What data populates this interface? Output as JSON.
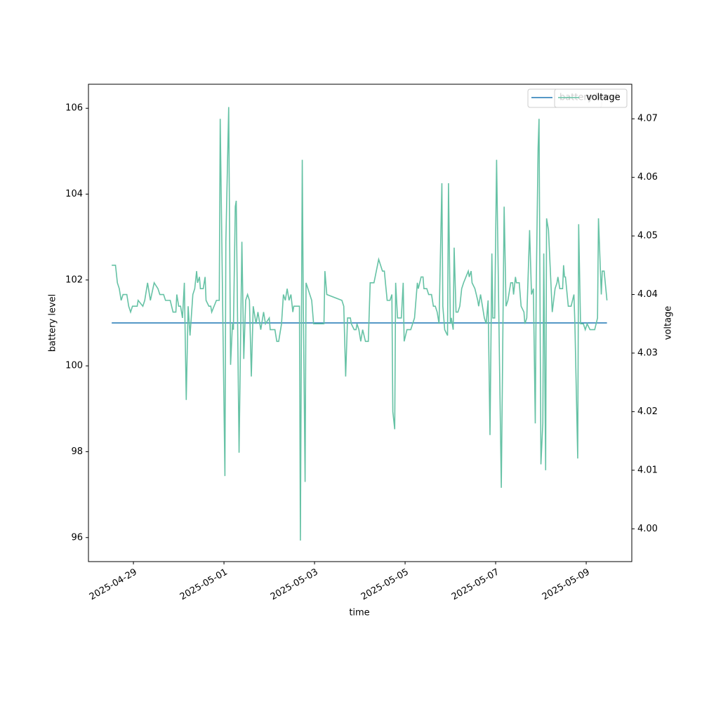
{
  "chart_data": {
    "type": "line",
    "xlabel": "time",
    "ylabel": "battery level",
    "y2label": "voltage",
    "xlim": [
      "2025-04-28T00:10",
      "2025-05-10T00:10"
    ],
    "xticks": [
      "2025-04-29",
      "2025-05-01",
      "2025-05-03",
      "2025-05-05",
      "2025-05-07",
      "2025-05-09"
    ],
    "ylim": [
      95.44,
      106.56
    ],
    "yticks": [
      96,
      98,
      100,
      102,
      104,
      106
    ],
    "y2lim": [
      3.9944,
      4.0759
    ],
    "y2ticks": [
      {
        "value": 4,
        "label": "4.00"
      },
      4.01,
      4.02,
      4.03,
      4.04,
      4.05,
      4.06,
      4.07
    ],
    "legend": "upper right",
    "series": [
      {
        "name": "battery level",
        "color": "#1f77b4",
        "x": [
          "2025-04-28T12:30",
          "2025-05-09T11:00"
        ],
        "values": [
          101,
          101
        ]
      },
      {
        "name": "voltage",
        "color": "#66c2a5",
        "axis": "y2",
        "x": [
          "2025-04-28T12:30",
          "2025-04-28T14:30",
          "2025-04-28T15:30",
          "2025-04-28T16:30",
          "2025-04-28T17:30",
          "2025-04-28T18:30",
          "2025-04-28T20:30",
          "2025-04-28T21:30",
          "2025-04-28T22:30",
          "2025-04-28T23:30",
          "2025-04-29T02:00",
          "2025-04-29T02:30",
          "2025-04-29T05:00",
          "2025-04-29T06:00",
          "2025-04-29T07:30",
          "2025-04-29T09:00",
          "2025-04-29T11:00",
          "2025-04-29T13:00",
          "2025-04-29T14:00",
          "2025-04-29T16:00",
          "2025-04-29T17:00",
          "2025-04-29T19:30",
          "2025-04-29T21:00",
          "2025-04-29T22:30",
          "2025-04-29T23:00",
          "2025-04-30T00:00",
          "2025-04-30T01:00",
          "2025-04-30T02:00",
          "2025-04-30T03:00",
          "2025-04-30T04:00",
          "2025-04-30T05:00",
          "2025-04-30T06:00",
          "2025-04-30T07:30",
          "2025-04-30T08:30",
          "2025-04-30T09:30",
          "2025-04-30T10:00",
          "2025-04-30T11:00",
          "2025-04-30T11:30",
          "2025-04-30T13:00",
          "2025-04-30T14:00",
          "2025-04-30T14:30",
          "2025-04-30T16:00",
          "2025-04-30T17:00",
          "2025-04-30T17:30",
          "2025-04-30T20:00",
          "2025-04-30T21:30",
          "2025-04-30T22:00",
          "2025-05-01T00:30",
          "2025-05-01T01:00",
          "2025-05-01T02:30",
          "2025-05-01T03:30",
          "2025-05-01T04:30",
          "2025-05-01T05:00",
          "2025-05-01T06:00",
          "2025-05-01T06:30",
          "2025-05-01T08:00",
          "2025-05-01T09:30",
          "2025-05-01T10:30",
          "2025-05-01T11:30",
          "2025-05-01T12:30",
          "2025-05-01T13:30",
          "2025-05-01T14:30",
          "2025-05-01T15:30",
          "2025-05-01T17:00",
          "2025-05-01T18:00",
          "2025-05-01T19:30",
          "2025-05-01T21:00",
          "2025-05-01T22:00",
          "2025-05-02T00:00",
          "2025-05-02T00:30",
          "2025-05-02T03:00",
          "2025-05-02T04:00",
          "2025-05-02T05:00",
          "2025-05-02T06:30",
          "2025-05-02T07:30",
          "2025-05-02T08:30",
          "2025-05-02T09:30",
          "2025-05-02T10:30",
          "2025-05-02T11:30",
          "2025-05-02T12:30",
          "2025-05-02T13:00",
          "2025-05-02T16:00",
          "2025-05-02T16:30",
          "2025-05-02T17:30",
          "2025-05-02T18:00",
          "2025-05-02T19:00",
          "2025-05-02T19:30",
          "2025-05-02T22:30",
          "2025-05-02T23:30",
          "2025-05-03T05:00",
          "2025-05-03T05:30",
          "2025-05-03T06:30",
          "2025-05-03T14:30",
          "2025-05-03T15:30",
          "2025-05-03T16:30",
          "2025-05-03T17:30",
          "2025-05-03T19:00",
          "2025-05-03T19:30",
          "2025-05-03T21:00",
          "2025-05-03T22:00",
          "2025-05-03T22:30",
          "2025-05-03T23:30",
          "2025-05-04T00:30",
          "2025-05-04T01:30",
          "2025-05-04T03:00",
          "2025-05-04T04:30",
          "2025-05-04T05:30",
          "2025-05-04T07:30",
          "2025-05-04T10:00",
          "2025-05-04T12:00",
          "2025-05-04T13:00",
          "2025-05-04T14:30",
          "2025-05-04T16:00",
          "2025-05-04T17:00",
          "2025-05-04T17:30",
          "2025-05-04T18:30",
          "2025-05-04T19:00",
          "2025-05-04T20:00",
          "2025-05-04T22:00",
          "2025-05-04T23:00",
          "2025-05-04T23:30",
          "2025-05-05T01:00",
          "2025-05-05T03:00",
          "2025-05-05T05:00",
          "2025-05-05T06:30",
          "2025-05-05T07:00",
          "2025-05-05T08:30",
          "2025-05-05T09:30",
          "2025-05-05T10:00",
          "2025-05-05T11:30",
          "2025-05-05T12:30",
          "2025-05-05T14:00",
          "2025-05-05T15:00",
          "2025-05-05T16:00",
          "2025-05-05T17:00",
          "2025-05-05T18:00",
          "2025-05-05T19:30",
          "2025-05-05T20:00",
          "2025-05-05T21:00",
          "2025-05-05T22:30",
          "2025-05-05T23:00",
          "2025-05-06T00:00",
          "2025-05-06T00:30",
          "2025-05-06T01:30",
          "2025-05-06T02:00",
          "2025-05-06T03:00",
          "2025-05-06T04:00",
          "2025-05-06T05:00",
          "2025-05-06T06:00",
          "2025-05-06T07:00",
          "2025-05-06T09:30",
          "2025-05-06T10:00",
          "2025-05-06T11:00",
          "2025-05-06T11:30",
          "2025-05-06T13:00",
          "2025-05-06T14:30",
          "2025-05-06T15:00",
          "2025-05-06T16:00",
          "2025-05-06T18:00",
          "2025-05-06T19:00",
          "2025-05-06T20:00",
          "2025-05-06T21:00",
          "2025-05-06T22:00",
          "2025-05-06T22:30",
          "2025-05-06T23:30",
          "2025-05-07T00:30",
          "2025-05-07T03:00",
          "2025-05-07T04:30",
          "2025-05-07T05:30",
          "2025-05-07T06:30",
          "2025-05-07T08:00",
          "2025-05-07T09:00",
          "2025-05-07T09:30",
          "2025-05-07T10:30",
          "2025-05-07T11:00",
          "2025-05-07T12:30",
          "2025-05-07T13:30",
          "2025-05-07T15:00",
          "2025-05-07T15:30",
          "2025-05-07T16:30",
          "2025-05-07T18:00",
          "2025-05-07T19:00",
          "2025-05-07T20:00",
          "2025-05-07T21:00",
          "2025-05-07T21:30",
          "2025-05-07T22:30",
          "2025-05-07T23:00",
          "2025-05-08T00:00",
          "2025-05-08T01:00",
          "2025-05-08T01:30",
          "2025-05-08T02:30",
          "2025-05-08T03:00",
          "2025-05-08T04:00",
          "2025-05-08T06:00",
          "2025-05-08T07:30",
          "2025-05-08T08:30",
          "2025-05-08T09:00",
          "2025-05-08T10:00",
          "2025-05-08T11:30",
          "2025-05-08T12:00",
          "2025-05-08T12:30",
          "2025-05-08T13:00",
          "2025-05-08T14:30",
          "2025-05-08T16:00",
          "2025-05-08T17:30",
          "2025-05-08T18:00",
          "2025-05-08T19:30",
          "2025-05-08T20:00",
          "2025-05-08T21:00",
          "2025-05-08T22:30",
          "2025-05-08T23:30",
          "2025-05-09T00:30",
          "2025-05-09T02:00",
          "2025-05-09T04:30",
          "2025-05-09T06:00",
          "2025-05-09T06:30",
          "2025-05-09T08:00",
          "2025-05-09T08:30",
          "2025-05-09T09:30",
          "2025-05-09T11:00"
        ],
        "values": [
          4.045,
          4.045,
          4.042,
          4.041,
          4.039,
          4.04,
          4.04,
          4.038,
          4.037,
          4.038,
          4.038,
          4.039,
          4.038,
          4.039,
          4.042,
          4.039,
          4.042,
          4.041,
          4.04,
          4.04,
          4.039,
          4.039,
          4.037,
          4.037,
          4.04,
          4.038,
          4.038,
          4.036,
          4.042,
          4.022,
          4.038,
          4.033,
          4.04,
          4.041,
          4.044,
          4.042,
          4.043,
          4.041,
          4.041,
          4.043,
          4.039,
          4.038,
          4.038,
          4.037,
          4.039,
          4.039,
          4.07,
          4.009,
          4.049,
          4.072,
          4.028,
          4.035,
          4.034,
          4.055,
          4.056,
          4.013,
          4.049,
          4.029,
          4.039,
          4.04,
          4.039,
          4.026,
          4.038,
          4.035,
          4.037,
          4.034,
          4.037,
          4.035,
          4.036,
          4.034,
          4.034,
          4.032,
          4.032,
          4.035,
          4.04,
          4.039,
          4.041,
          4.039,
          4.04,
          4.037,
          4.038,
          4.038,
          3.998,
          4.063,
          4.04,
          4.008,
          4.042,
          4.039,
          4.035,
          4.035,
          4.044,
          4.04,
          4.039,
          4.038,
          4.026,
          4.036,
          4.036,
          4.035,
          4.034,
          4.034,
          4.035,
          4.034,
          4.032,
          4.034,
          4.032,
          4.032,
          4.042,
          4.042,
          4.046,
          4.044,
          4.044,
          4.039,
          4.039,
          4.04,
          4.02,
          4.017,
          4.042,
          4.036,
          4.036,
          4.042,
          4.032,
          4.034,
          4.034,
          4.036,
          4.042,
          4.041,
          4.043,
          4.043,
          4.041,
          4.041,
          4.04,
          4.04,
          4.038,
          4.038,
          4.037,
          4.035,
          4.059,
          4.038,
          4.034,
          4.033,
          4.059,
          4.035,
          4.036,
          4.034,
          4.048,
          4.037,
          4.037,
          4.038,
          4.041,
          4.042,
          4.044,
          4.043,
          4.044,
          4.042,
          4.041,
          4.039,
          4.038,
          4.04,
          4.036,
          4.035,
          4.039,
          4.016,
          4.047,
          4.036,
          4.036,
          4.063,
          4.007,
          4.055,
          4.038,
          4.039,
          4.042,
          4.042,
          4.04,
          4.043,
          4.042,
          4.042,
          4.038,
          4.037,
          4.035,
          4.036,
          4.051,
          4.04,
          4.041,
          4.018,
          4.041,
          4.065,
          4.07,
          4.011,
          4.018,
          4.047,
          4.01,
          4.053,
          4.051,
          4.037,
          4.041,
          4.042,
          4.043,
          4.041,
          4.041,
          4.045,
          4.043,
          4.043,
          4.038,
          4.038,
          4.04,
          4.035,
          4.012,
          4.052,
          4.035,
          4.035,
          4.034,
          4.035,
          4.034,
          4.034,
          4.036,
          4.053,
          4.04,
          4.044,
          4.044,
          4.039
        ]
      }
    ]
  }
}
